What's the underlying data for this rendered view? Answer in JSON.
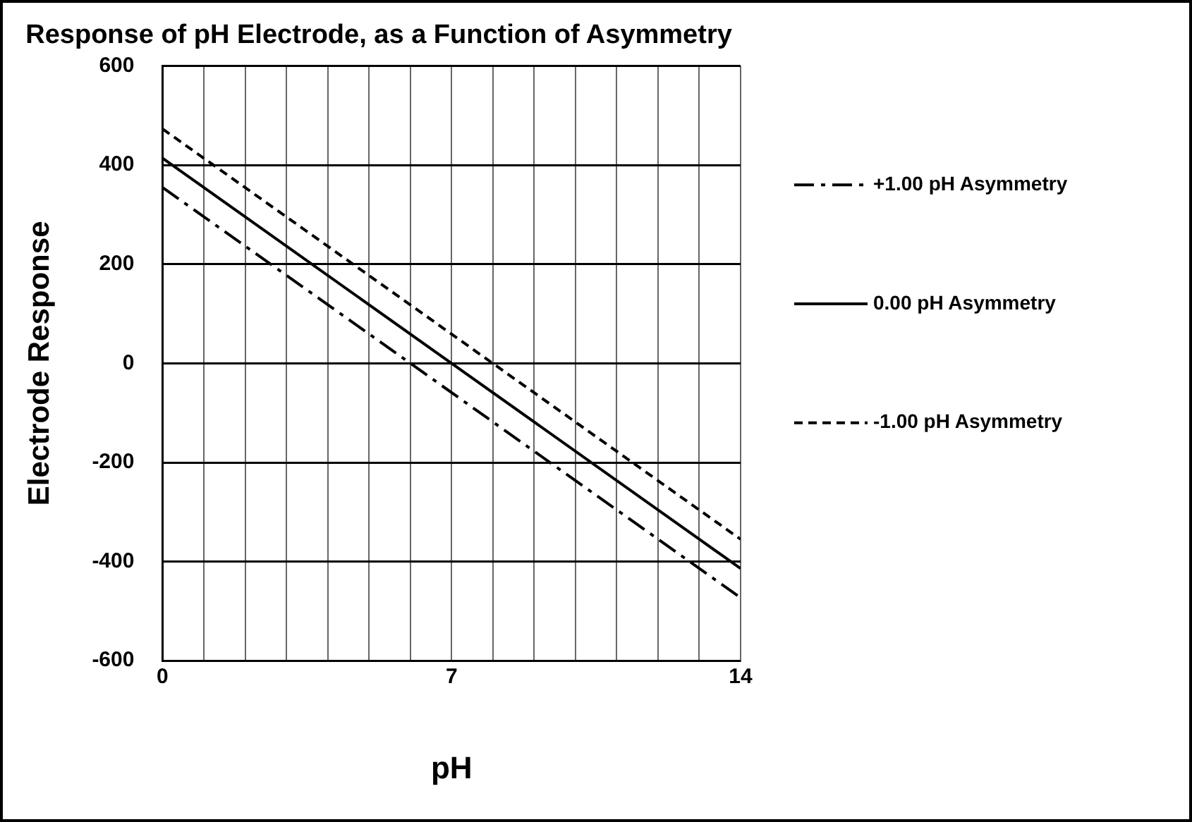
{
  "chart_data": {
    "type": "line",
    "title": "Response of pH Electrode, as a Function of Asymmetry",
    "xlabel": "pH",
    "ylabel": "Electrode Response",
    "x": [
      0,
      14
    ],
    "series": [
      {
        "name": "+1.00 pH Asymmetry",
        "color": "#000000",
        "values": [
          355,
          -473
        ],
        "line_style": "dashdot"
      },
      {
        "name": "0.00 pH Asymmetry",
        "color": "#000000",
        "values": [
          414,
          -414
        ],
        "line_style": "solid"
      },
      {
        "name": "-1.00 pH Asymmetry",
        "color": "#000000",
        "values": [
          473,
          -355
        ],
        "line_style": "dashed"
      }
    ],
    "xlim": [
      0,
      14
    ],
    "xticks": [
      0,
      {
        "value": 1,
        "label": null
      },
      {
        "value": 2,
        "label": null
      },
      {
        "value": 3,
        "label": null
      },
      {
        "value": 4,
        "label": null
      },
      {
        "value": 5,
        "label": null
      },
      {
        "value": 6,
        "label": null
      },
      7,
      {
        "value": 8,
        "label": null
      },
      {
        "value": 9,
        "label": null
      },
      {
        "value": 10,
        "label": null
      },
      {
        "value": 11,
        "label": null
      },
      {
        "value": 12,
        "label": null
      },
      {
        "value": 13,
        "label": null
      },
      14
    ],
    "ylim": [
      -600,
      600
    ],
    "yticks": [
      -600,
      -400,
      -200,
      0,
      200,
      400,
      600
    ],
    "grid": true,
    "legend": "right",
    "marker": "none"
  }
}
